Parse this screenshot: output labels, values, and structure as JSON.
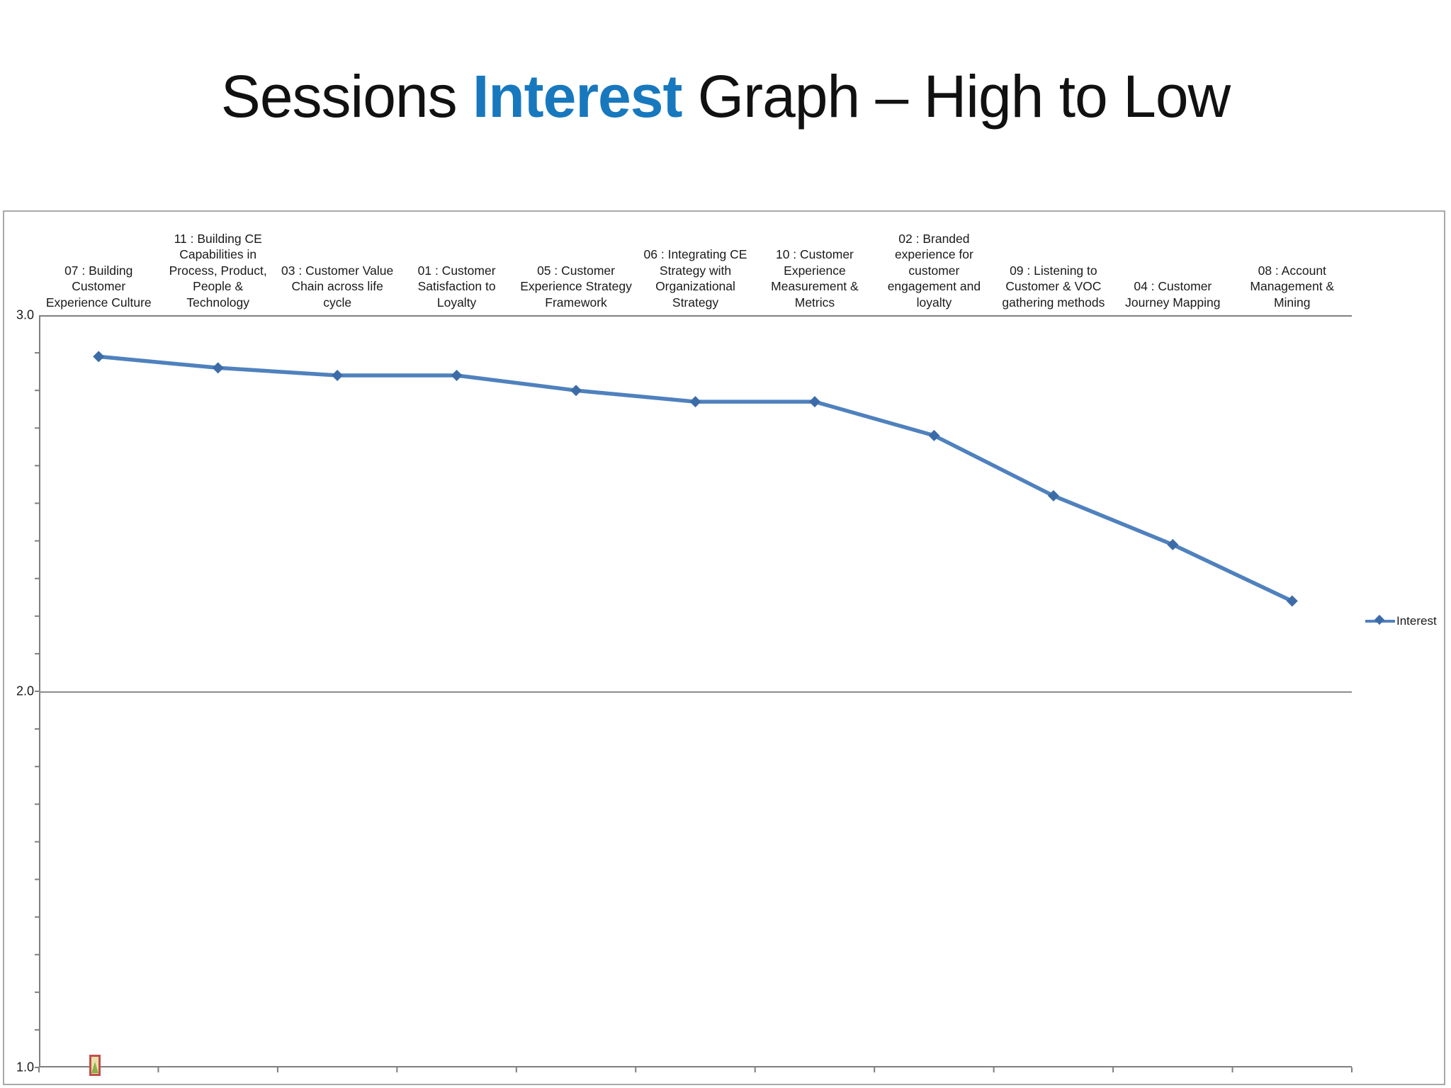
{
  "title": {
    "prefix": "Sessions ",
    "highlight": "Interest",
    "suffix": " Graph – High to Low"
  },
  "legend": {
    "label": "Interest"
  },
  "y_axis": {
    "tick_labels": [
      "3.0",
      "2.0",
      "1.0"
    ]
  },
  "colors": {
    "title_highlight": "#1878be",
    "line": "#4f81bd",
    "marker": "#3c6ca8",
    "axis": "#7f7f7f",
    "gridline": "#8c8c8c"
  },
  "chart_data": {
    "type": "line",
    "title": "Sessions Interest Graph – High to Low",
    "categories": [
      "07 : Building Customer Experience Culture",
      "11 : Building CE Capabilities in Process, Product, People & Technology",
      "03 : Customer Value Chain across life cycle",
      "01 : Customer Satisfaction to Loyalty",
      "05 : Customer Experience Strategy Framework",
      "06 : Integrating CE Strategy with Organizational Strategy",
      "10 : Customer Experience Measurement & Metrics",
      "02 : Branded experience for customer engagement and loyalty",
      "09 : Listening to Customer & VOC gathering methods",
      "04 : Customer Journey Mapping",
      "08 : Account Management & Mining"
    ],
    "series": [
      {
        "name": "Interest",
        "values": [
          2.89,
          2.86,
          2.84,
          2.84,
          2.8,
          2.77,
          2.77,
          2.68,
          2.52,
          2.39,
          2.24
        ]
      }
    ],
    "xlabel": "",
    "ylabel": "",
    "ylim": [
      1.0,
      3.0
    ],
    "y_major_ticks": [
      1.0,
      2.0,
      3.0
    ],
    "y_minor_interval": 0.1,
    "grid": "horizontal-major-only",
    "legend_position": "right",
    "marker_shape": "diamond",
    "category_labels_position": "top"
  }
}
